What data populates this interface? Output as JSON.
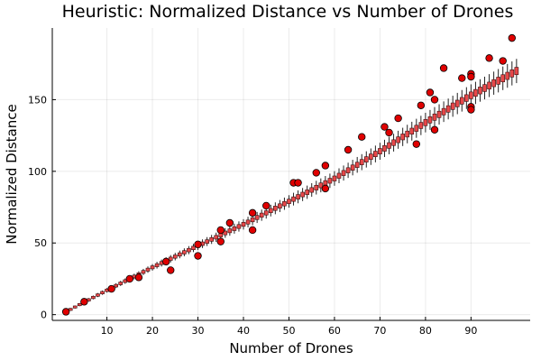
{
  "chart_data": {
    "type": "box",
    "title": "Heuristic: Normalized Distance vs Number of Drones",
    "xlabel": "Number of Drones",
    "ylabel": "Normalized Distance",
    "xlim": [
      -2,
      103
    ],
    "ylim": [
      -4,
      200
    ],
    "xticks": [
      10,
      20,
      30,
      40,
      50,
      60,
      70,
      80,
      90
    ],
    "yticks": [
      0,
      50,
      100,
      150
    ],
    "grid": true,
    "legend": "none",
    "colors": {
      "box": "#e8484a",
      "outlier": "#e00000"
    },
    "boxes": {
      "x_start": 1,
      "x_end": 100,
      "median_anchors": [
        [
          1,
          2
        ],
        [
          10,
          17
        ],
        [
          20,
          33
        ],
        [
          30,
          48
        ],
        [
          40,
          63
        ],
        [
          50,
          79
        ],
        [
          60,
          95
        ],
        [
          70,
          114
        ],
        [
          80,
          134
        ],
        [
          90,
          153
        ],
        [
          100,
          170
        ]
      ]
    },
    "outliers": [
      [
        1,
        2
      ],
      [
        5,
        9
      ],
      [
        11,
        18
      ],
      [
        15,
        25
      ],
      [
        17,
        26
      ],
      [
        23,
        37
      ],
      [
        24,
        31
      ],
      [
        30,
        49
      ],
      [
        30,
        41
      ],
      [
        35,
        59
      ],
      [
        35,
        51
      ],
      [
        37,
        64
      ],
      [
        42,
        71
      ],
      [
        42,
        59
      ],
      [
        45,
        76
      ],
      [
        51,
        92
      ],
      [
        52,
        92
      ],
      [
        56,
        99
      ],
      [
        58,
        88
      ],
      [
        58,
        104
      ],
      [
        63,
        115
      ],
      [
        66,
        124
      ],
      [
        71,
        131
      ],
      [
        72,
        127
      ],
      [
        74,
        137
      ],
      [
        78,
        119
      ],
      [
        79,
        146
      ],
      [
        81,
        155
      ],
      [
        82,
        150
      ],
      [
        82,
        129
      ],
      [
        84,
        172
      ],
      [
        88,
        165
      ],
      [
        90,
        168
      ],
      [
        90,
        166
      ],
      [
        90,
        145
      ],
      [
        90,
        143
      ],
      [
        94,
        179
      ],
      [
        97,
        177
      ],
      [
        99,
        193
      ]
    ]
  }
}
